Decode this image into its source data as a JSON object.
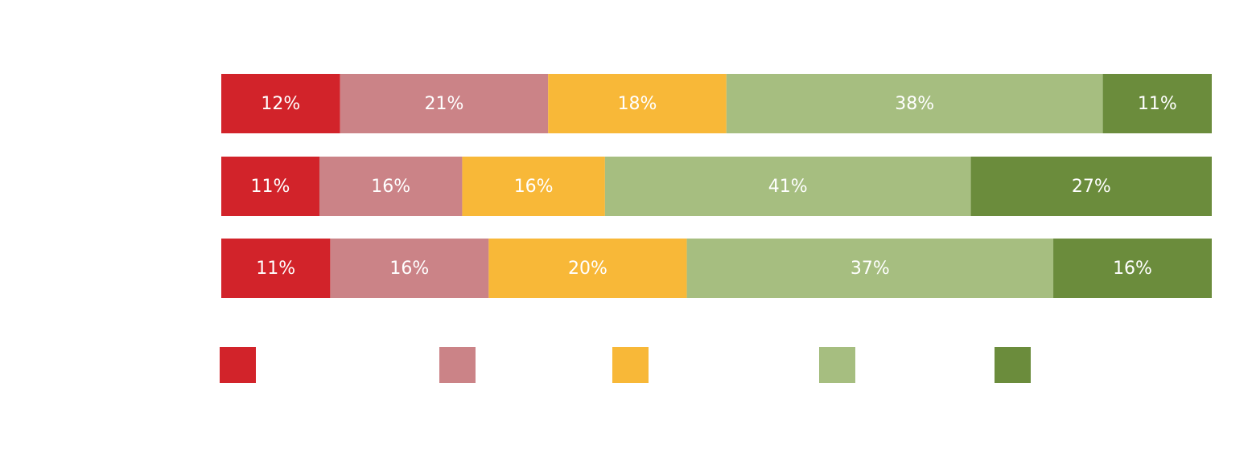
{
  "chart_data": {
    "type": "bar",
    "stacked": true,
    "categories": [
      null,
      null,
      null
    ],
    "series": [
      {
        "color": "#d2232a",
        "values": [
          12,
          11,
          11
        ],
        "value_labels": [
          "12%",
          "11%",
          "11%"
        ]
      },
      {
        "color": "#cb8387",
        "values": [
          21,
          16,
          16
        ],
        "value_labels": [
          "21%",
          "16%",
          "16%"
        ]
      },
      {
        "color": "#f8b838",
        "values": [
          18,
          16,
          20
        ],
        "value_labels": [
          "18%",
          "16%",
          "20%"
        ]
      },
      {
        "color": "#a6be80",
        "values": [
          38,
          41,
          37
        ],
        "value_labels": [
          "38%",
          "41%",
          "37%"
        ]
      },
      {
        "color": "#6b8c3c",
        "values": [
          11,
          27,
          16
        ],
        "value_labels": [
          "11%",
          "27%",
          "16%"
        ]
      }
    ]
  }
}
